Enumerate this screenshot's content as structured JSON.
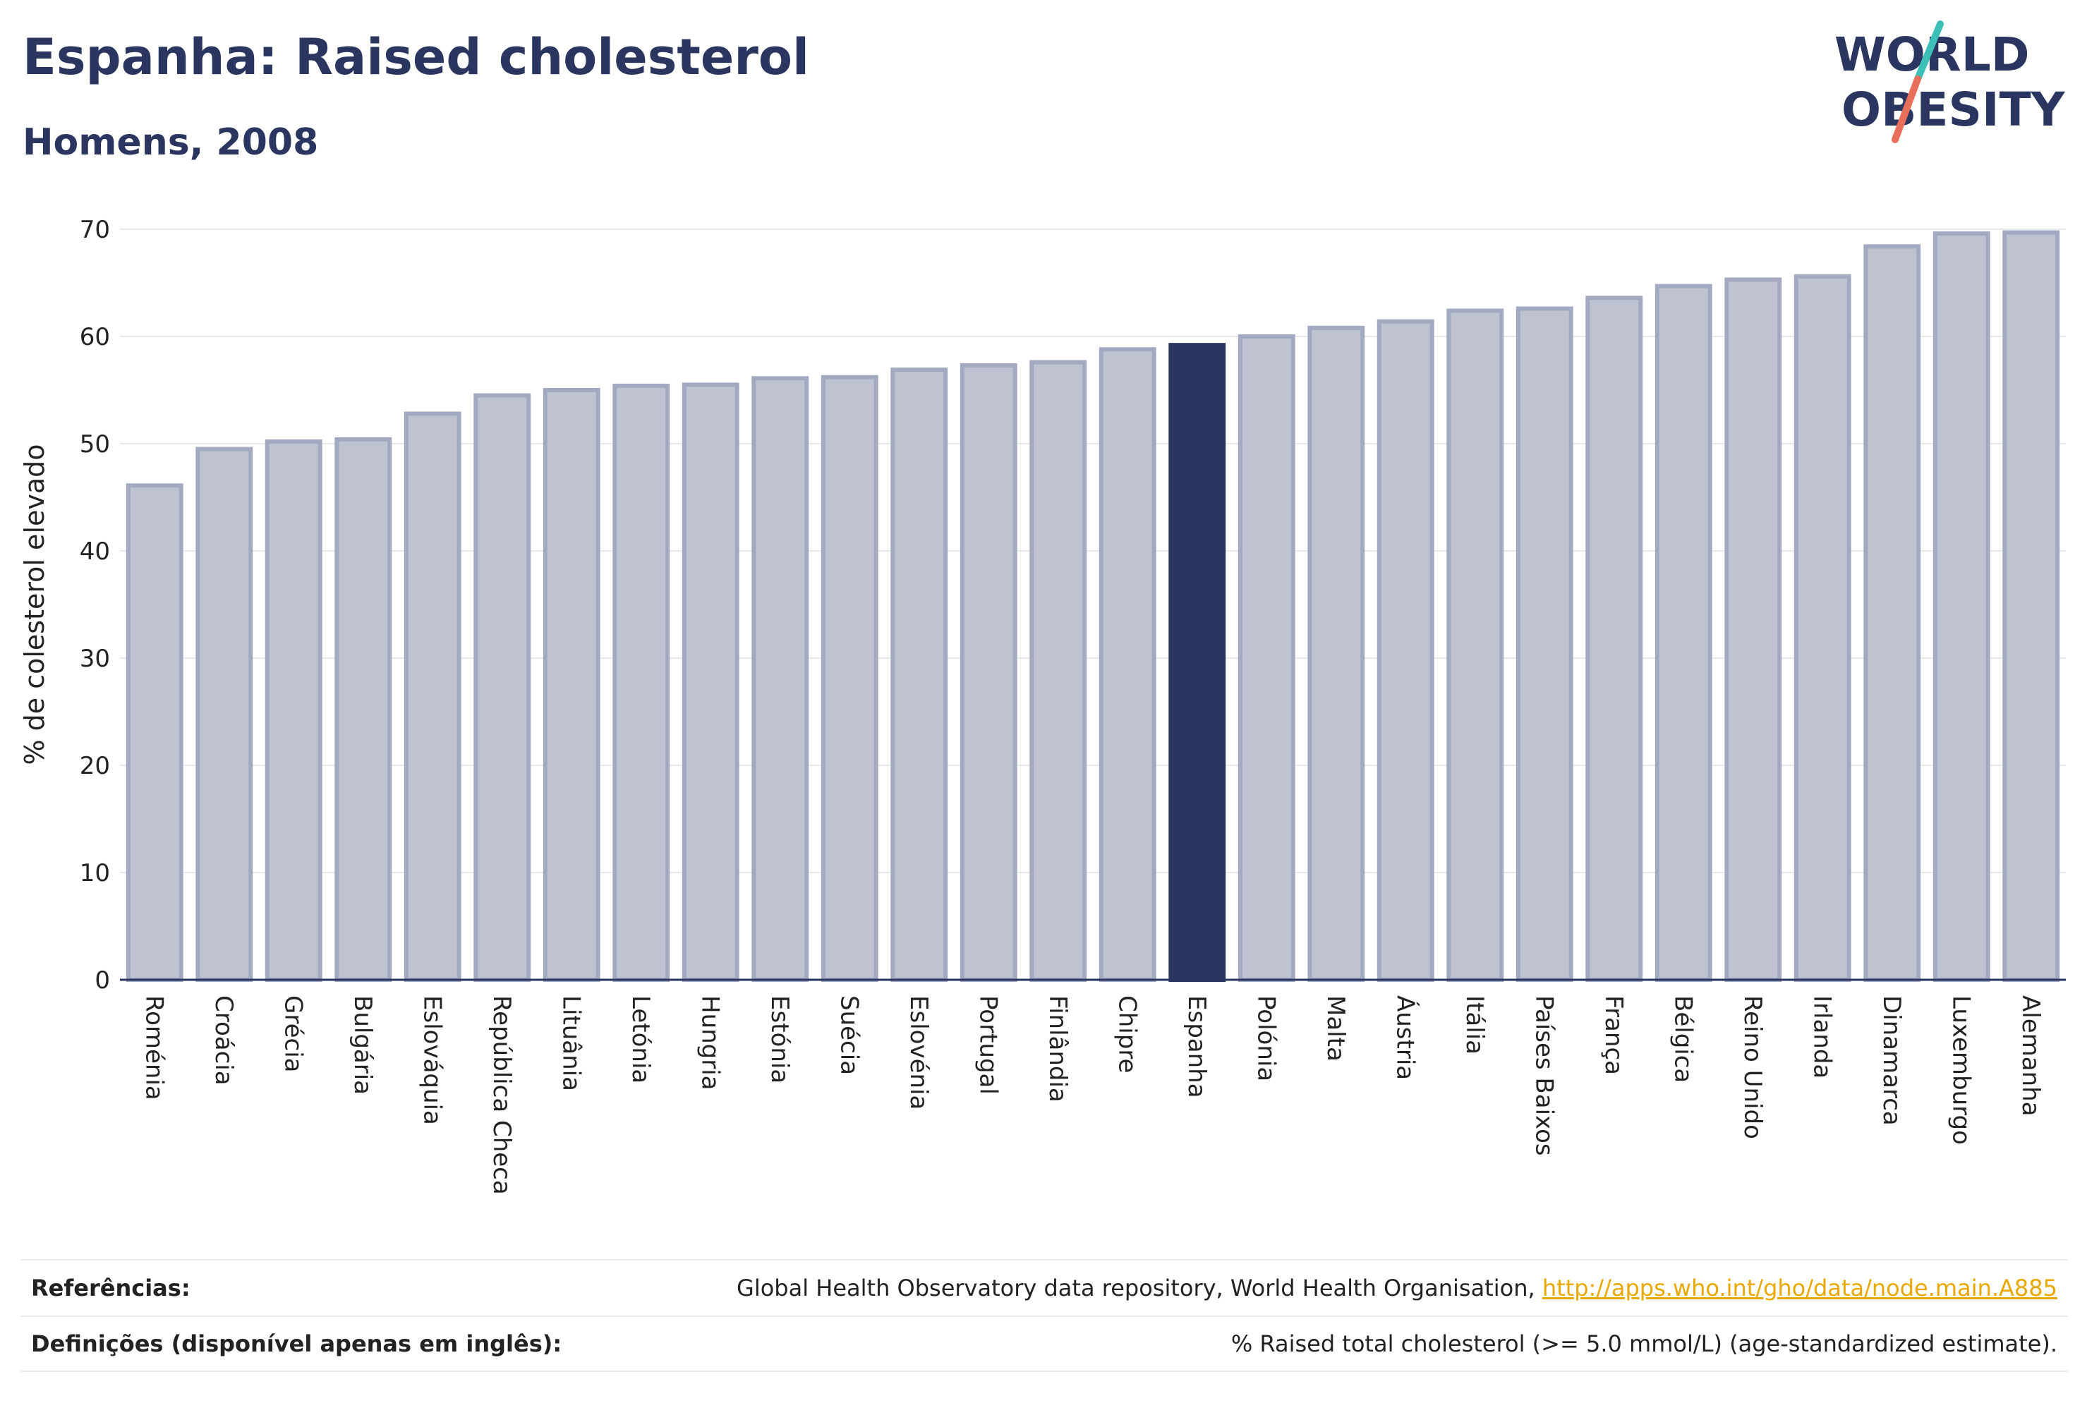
{
  "header": {
    "title": "Espanha: Raised cholesterol",
    "subtitle": "Homens, 2008"
  },
  "logo": {
    "line1": "WORLD",
    "line2": "OBESITY"
  },
  "colors": {
    "highlight": "#2a3560",
    "bar_fill": "#bfc3d1",
    "bar_stroke": "#a3a9c0",
    "grid": "#e8e9ef",
    "logo_teal": "#3bbfb6",
    "logo_coral": "#e8705a",
    "link": "#e8a800"
  },
  "chart_data": {
    "type": "bar",
    "ylabel": "% de colesterol elevado",
    "xlabel": "",
    "ylim": [
      0,
      70
    ],
    "yticks": [
      0,
      10,
      20,
      30,
      40,
      50,
      60,
      70
    ],
    "grid": true,
    "highlight": "Espanha",
    "categories": [
      "Roménia",
      "Croácia",
      "Grécia",
      "Bulgária",
      "Eslováquia",
      "República Checa",
      "Lituânia",
      "Letónia",
      "Hungria",
      "Estónia",
      "Suécia",
      "Eslovénia",
      "Portugal",
      "Finlândia",
      "Chipre",
      "Espanha",
      "Polónia",
      "Malta",
      "Áustria",
      "Itália",
      "Países Baixos",
      "França",
      "Bélgica",
      "Reino Unido",
      "Irlanda",
      "Dinamarca",
      "Luxemburgo",
      "Alemanha"
    ],
    "values": [
      46.1,
      49.5,
      50.2,
      50.4,
      52.8,
      54.5,
      55.0,
      55.4,
      55.5,
      56.1,
      56.2,
      56.9,
      57.3,
      57.6,
      58.8,
      59.2,
      60.0,
      60.8,
      61.4,
      62.4,
      62.6,
      63.6,
      64.7,
      65.3,
      65.6,
      68.4,
      69.6,
      69.7
    ]
  },
  "references": {
    "label": "Referências:",
    "text": "Global Health Observatory data repository, World Health Organisation, ",
    "link": "http://apps.who.int/gho/data/node.main.A885"
  },
  "definitions": {
    "label": "Definições (disponível apenas em inglês):",
    "text": "% Raised total cholesterol (>= 5.0 mmol/L) (age-standardized estimate)."
  }
}
